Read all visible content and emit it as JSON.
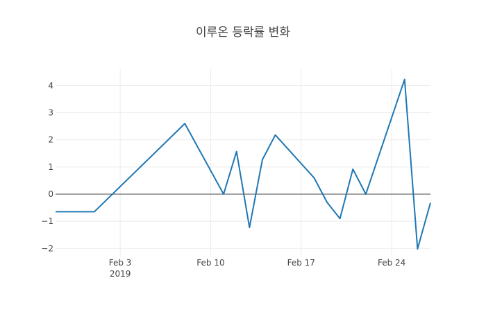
{
  "chart_data": {
    "type": "line",
    "title": "이루온 등락률 변화",
    "xlabel": "",
    "ylabel": "",
    "x_type": "date",
    "xlim": [
      "2019-01-29",
      "2019-02-27"
    ],
    "ylim": [
      -2.3,
      4.6
    ],
    "yticks": [
      -2,
      -1,
      0,
      1,
      2,
      3,
      4
    ],
    "ytick_labels": [
      "−2",
      "−1",
      "0",
      "1",
      "2",
      "3",
      "4"
    ],
    "xticks": [
      {
        "date": "2019-02-03",
        "label": "Feb 3",
        "sublabel": "2019"
      },
      {
        "date": "2019-02-10",
        "label": "Feb 10",
        "sublabel": ""
      },
      {
        "date": "2019-02-17",
        "label": "Feb 17",
        "sublabel": ""
      },
      {
        "date": "2019-02-24",
        "label": "Feb 24",
        "sublabel": ""
      }
    ],
    "grid": true,
    "zeroline": true,
    "series": [
      {
        "color": "#1f77b4",
        "points": [
          {
            "x": "2019-01-29",
            "y": -0.65
          },
          {
            "x": "2019-02-01",
            "y": -0.65
          },
          {
            "x": "2019-02-08",
            "y": 2.6
          },
          {
            "x": "2019-02-11",
            "y": 0.0
          },
          {
            "x": "2019-02-12",
            "y": 1.57
          },
          {
            "x": "2019-02-13",
            "y": -1.23
          },
          {
            "x": "2019-02-14",
            "y": 1.27
          },
          {
            "x": "2019-02-15",
            "y": 2.18
          },
          {
            "x": "2019-02-18",
            "y": 0.6
          },
          {
            "x": "2019-02-19",
            "y": -0.3
          },
          {
            "x": "2019-02-20",
            "y": -0.9
          },
          {
            "x": "2019-02-21",
            "y": 0.92
          },
          {
            "x": "2019-02-22",
            "y": 0.0
          },
          {
            "x": "2019-02-25",
            "y": 4.23
          },
          {
            "x": "2019-02-26",
            "y": -2.02
          },
          {
            "x": "2019-02-27",
            "y": -0.32
          }
        ]
      }
    ]
  }
}
